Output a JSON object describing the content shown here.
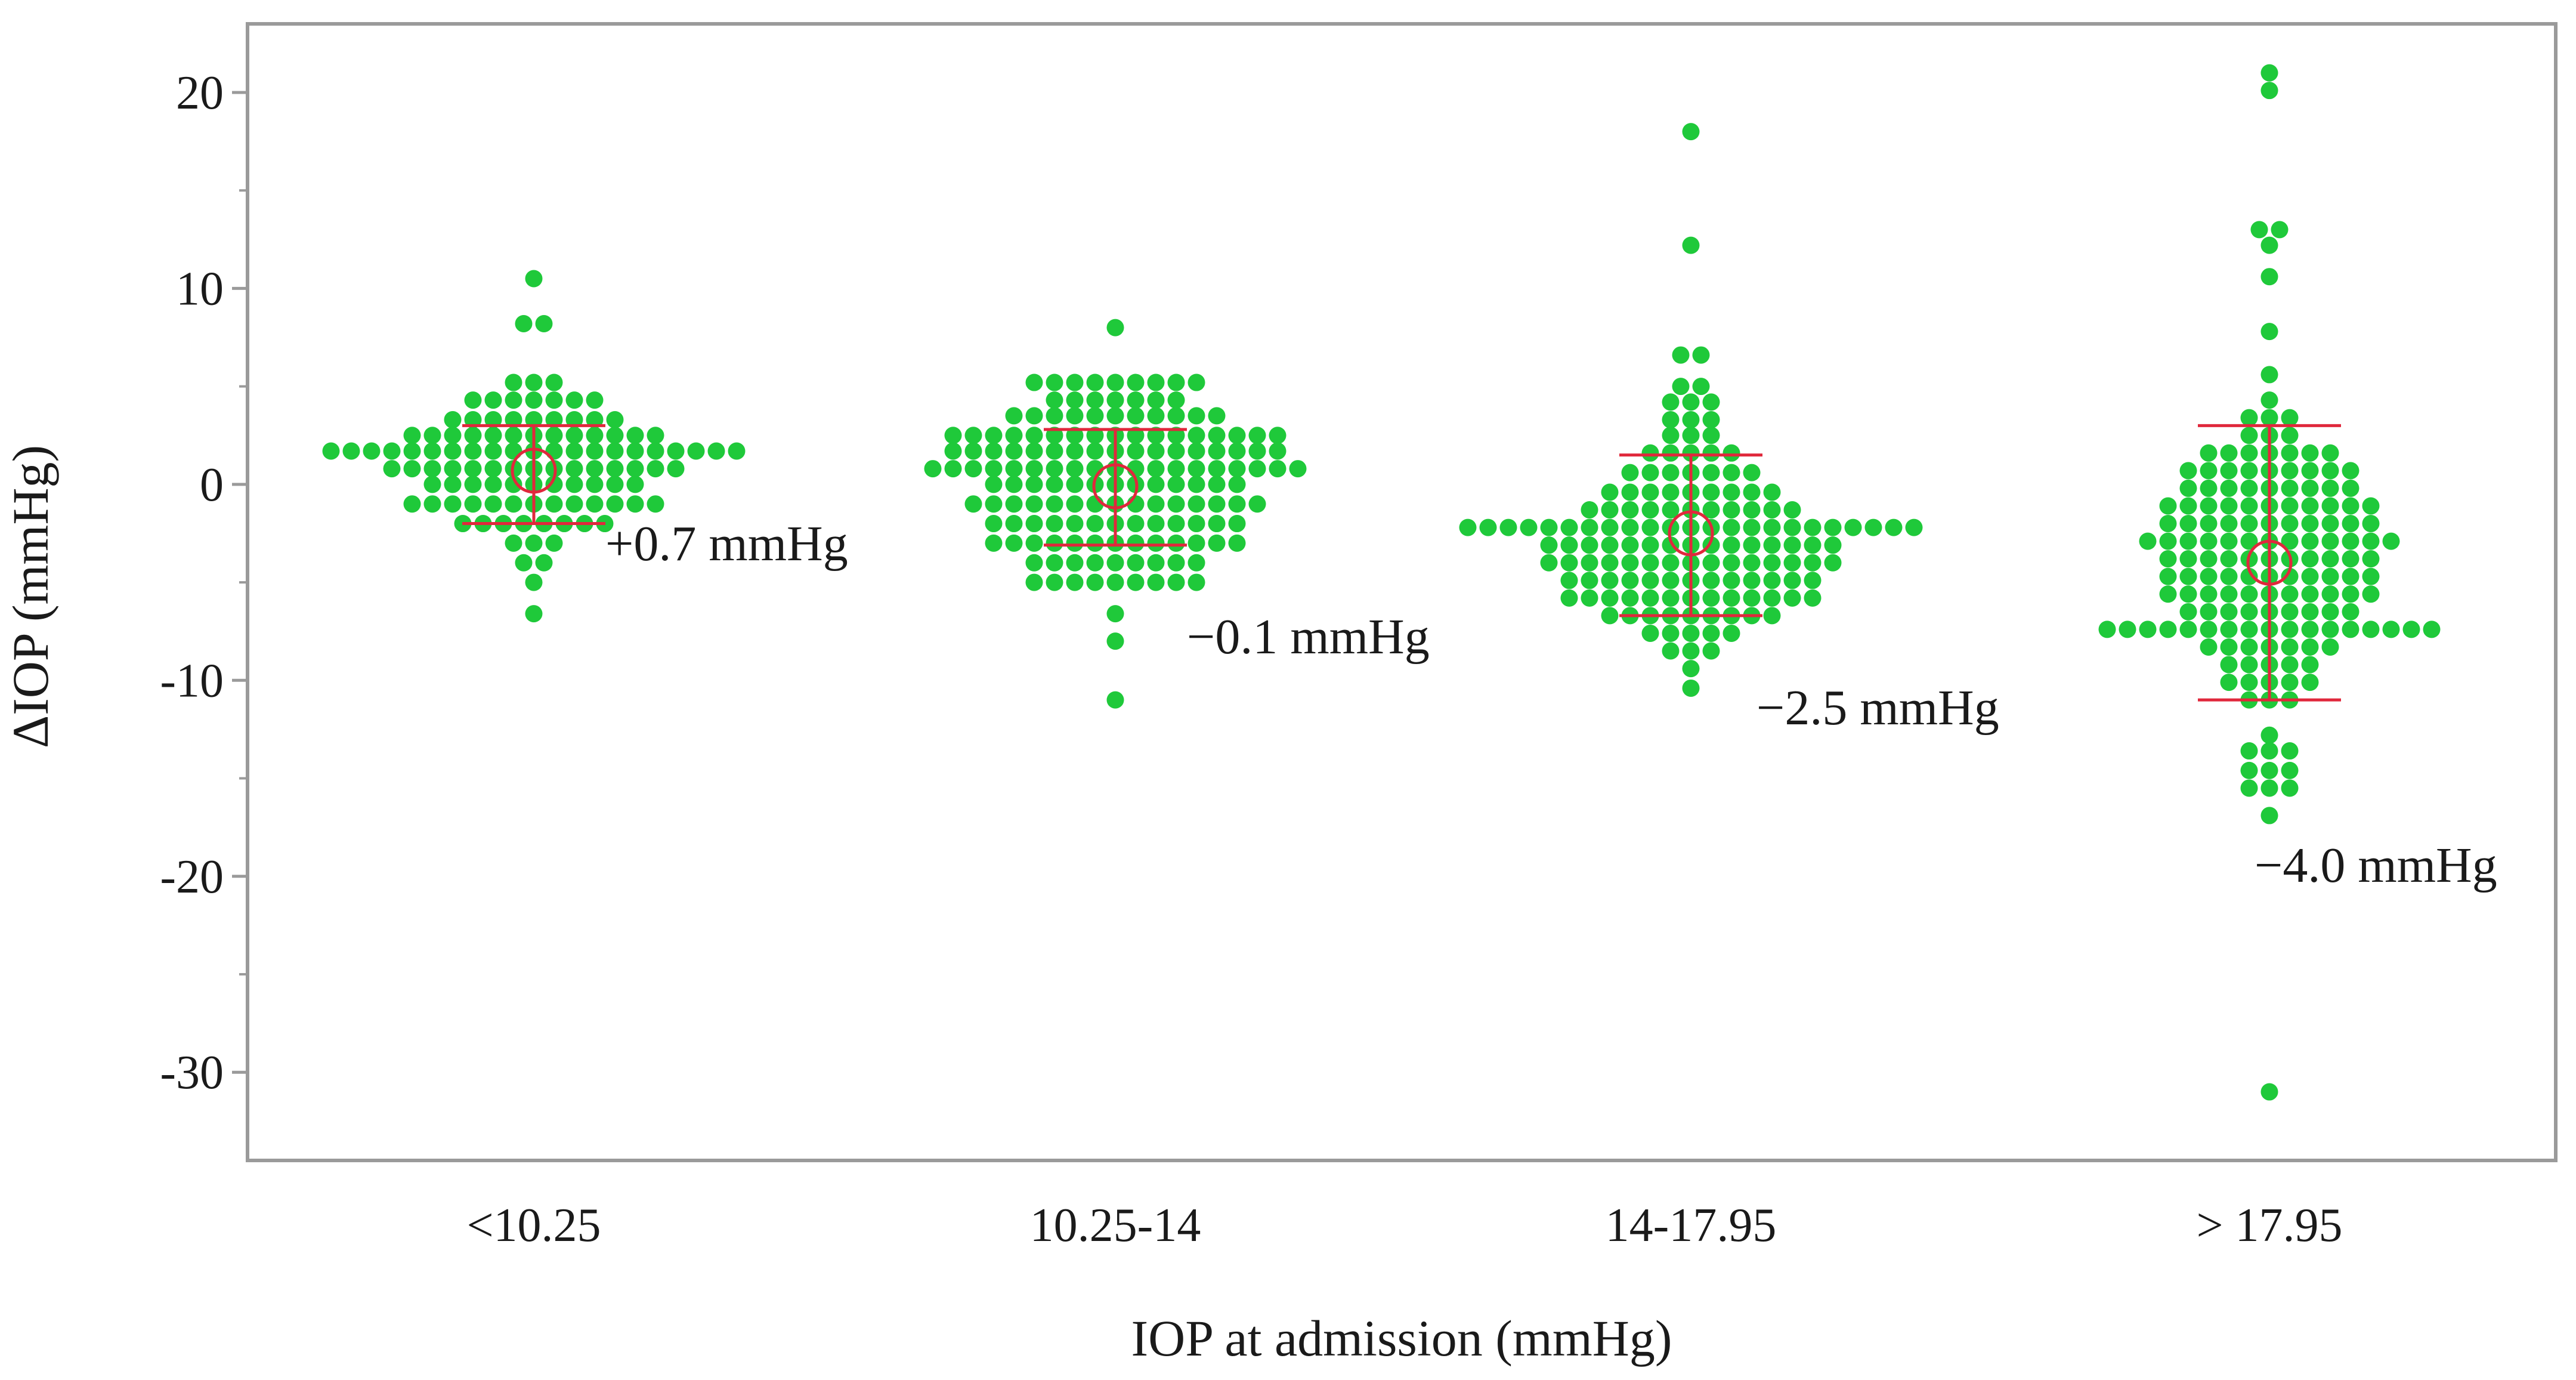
{
  "chart_data": {
    "type": "scatter",
    "subtype": "beeswarm",
    "xlabel": "IOP at admission (mmHg)",
    "ylabel": "ΔIOP (mmHg)",
    "ylim": [
      -34.5,
      23.5
    ],
    "yticks": [
      20,
      10,
      0,
      -10,
      -20,
      -30
    ],
    "grid": false,
    "colors": {
      "points": "#1fc93a",
      "error_bar": "#e0283c",
      "frame": "#9a9a9a",
      "text": "#1a1a1a"
    },
    "groups": [
      {
        "category": "<10.25",
        "mean": 0.7,
        "sd_upper": 3.0,
        "sd_lower": -2.0,
        "annotation": "+0.7 mmHg",
        "rows": [
          {
            "y": 10.5,
            "n": 1
          },
          {
            "y": 8.2,
            "n": 2
          },
          {
            "y": 5.2,
            "n": 3
          },
          {
            "y": 4.3,
            "n": 7
          },
          {
            "y": 3.3,
            "n": 9
          },
          {
            "y": 2.5,
            "n": 13
          },
          {
            "y": 1.7,
            "n": 21
          },
          {
            "y": 0.8,
            "n": 15
          },
          {
            "y": 0.0,
            "n": 11
          },
          {
            "y": -1.0,
            "n": 13
          },
          {
            "y": -2.0,
            "n": 8
          },
          {
            "y": -3.0,
            "n": 3
          },
          {
            "y": -4.0,
            "n": 2
          },
          {
            "y": -5.0,
            "n": 1
          },
          {
            "y": -6.6,
            "n": 1
          }
        ]
      },
      {
        "category": "10.25-14",
        "mean": -0.1,
        "sd_upper": 2.8,
        "sd_lower": -3.1,
        "annotation": "−0.1 mmHg",
        "rows": [
          {
            "y": 8.0,
            "n": 1
          },
          {
            "y": 5.2,
            "n": 9
          },
          {
            "y": 4.3,
            "n": 7
          },
          {
            "y": 3.5,
            "n": 11
          },
          {
            "y": 2.5,
            "n": 17
          },
          {
            "y": 1.7,
            "n": 17
          },
          {
            "y": 0.8,
            "n": 19
          },
          {
            "y": 0.0,
            "n": 13
          },
          {
            "y": -1.0,
            "n": 15
          },
          {
            "y": -2.0,
            "n": 13
          },
          {
            "y": -3.0,
            "n": 13
          },
          {
            "y": -4.0,
            "n": 9
          },
          {
            "y": -5.0,
            "n": 9
          },
          {
            "y": -6.6,
            "n": 1
          },
          {
            "y": -8.0,
            "n": 1
          },
          {
            "y": -11.0,
            "n": 1
          }
        ]
      },
      {
        "category": "14-17.95",
        "mean": -2.5,
        "sd_upper": 1.5,
        "sd_lower": -6.7,
        "annotation": "−2.5 mmHg",
        "rows": [
          {
            "y": 18.0,
            "n": 1
          },
          {
            "y": 12.2,
            "n": 1
          },
          {
            "y": 6.6,
            "n": 2
          },
          {
            "y": 5.0,
            "n": 2
          },
          {
            "y": 4.2,
            "n": 3
          },
          {
            "y": 3.3,
            "n": 3
          },
          {
            "y": 2.5,
            "n": 3
          },
          {
            "y": 1.6,
            "n": 5
          },
          {
            "y": 0.6,
            "n": 7
          },
          {
            "y": -0.4,
            "n": 9
          },
          {
            "y": -1.3,
            "n": 11
          },
          {
            "y": -2.2,
            "n": 23
          },
          {
            "y": -3.1,
            "n": 15
          },
          {
            "y": -4.0,
            "n": 15
          },
          {
            "y": -4.9,
            "n": 13
          },
          {
            "y": -5.8,
            "n": 13
          },
          {
            "y": -6.7,
            "n": 9
          },
          {
            "y": -7.6,
            "n": 5
          },
          {
            "y": -8.5,
            "n": 3
          },
          {
            "y": -9.4,
            "n": 1
          },
          {
            "y": -10.4,
            "n": 1
          }
        ]
      },
      {
        "category": "> 17.95",
        "mean": -4.0,
        "sd_upper": 3.0,
        "sd_lower": -11.0,
        "annotation": "−4.0 mmHg",
        "rows": [
          {
            "y": 21.0,
            "n": 1
          },
          {
            "y": 20.1,
            "n": 1
          },
          {
            "y": 13.0,
            "n": 2
          },
          {
            "y": 12.2,
            "n": 1
          },
          {
            "y": 10.6,
            "n": 1
          },
          {
            "y": 7.8,
            "n": 1
          },
          {
            "y": 5.6,
            "n": 1
          },
          {
            "y": 4.3,
            "n": 1
          },
          {
            "y": 3.4,
            "n": 3
          },
          {
            "y": 2.5,
            "n": 3
          },
          {
            "y": 1.6,
            "n": 7
          },
          {
            "y": 0.7,
            "n": 9
          },
          {
            "y": -0.2,
            "n": 9
          },
          {
            "y": -1.1,
            "n": 11
          },
          {
            "y": -2.0,
            "n": 11
          },
          {
            "y": -2.9,
            "n": 13
          },
          {
            "y": -3.8,
            "n": 11
          },
          {
            "y": -4.7,
            "n": 11
          },
          {
            "y": -5.6,
            "n": 11
          },
          {
            "y": -6.5,
            "n": 9
          },
          {
            "y": -7.4,
            "n": 17
          },
          {
            "y": -8.3,
            "n": 7
          },
          {
            "y": -9.2,
            "n": 5
          },
          {
            "y": -10.1,
            "n": 5
          },
          {
            "y": -11.0,
            "n": 3
          },
          {
            "y": -12.8,
            "n": 1
          },
          {
            "y": -13.6,
            "n": 3
          },
          {
            "y": -14.6,
            "n": 3
          },
          {
            "y": -15.5,
            "n": 3
          },
          {
            "y": -16.9,
            "n": 1
          },
          {
            "y": -31.0,
            "n": 1
          }
        ]
      }
    ]
  }
}
